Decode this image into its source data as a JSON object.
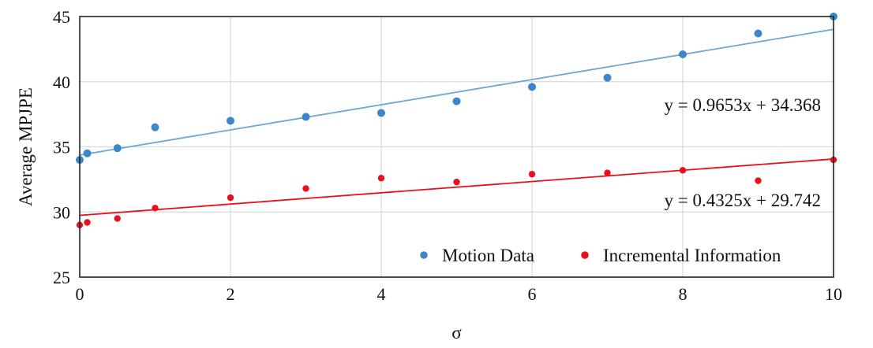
{
  "chart_data": {
    "type": "scatter",
    "xlabel": "σ",
    "ylabel": "Average MPJPE",
    "xlim": [
      0,
      10
    ],
    "ylim": [
      25,
      45
    ],
    "xticks": [
      0,
      2,
      4,
      6,
      8,
      10
    ],
    "yticks": [
      25,
      30,
      35,
      40,
      45
    ],
    "grid": true,
    "legend_position": "bottom-right",
    "series": [
      {
        "name": "Motion Data",
        "color": "#3b87c8",
        "x": [
          0,
          0.1,
          0.5,
          1,
          2,
          3,
          4,
          5,
          6,
          7,
          8,
          9,
          10
        ],
        "y": [
          34.0,
          34.5,
          34.9,
          36.5,
          37.0,
          37.3,
          37.6,
          38.5,
          39.6,
          40.3,
          42.1,
          43.7,
          45.0
        ],
        "trendline": {
          "slope": 0.9653,
          "intercept": 34.368,
          "color": "#6aa6d6",
          "label": "y = 0.9653x + 34.368"
        }
      },
      {
        "name": "Incremental Information",
        "color": "#e8101c",
        "x": [
          0,
          0.1,
          0.5,
          1,
          2,
          3,
          4,
          5,
          6,
          7,
          8,
          9,
          10
        ],
        "y": [
          29.0,
          29.2,
          29.5,
          30.3,
          31.1,
          31.8,
          32.6,
          32.3,
          32.9,
          33.0,
          33.2,
          32.4,
          34.0
        ],
        "trendline": {
          "slope": 0.4325,
          "intercept": 29.742,
          "color": "#e8101c",
          "label": "y = 0.4325x + 29.742"
        }
      }
    ]
  }
}
